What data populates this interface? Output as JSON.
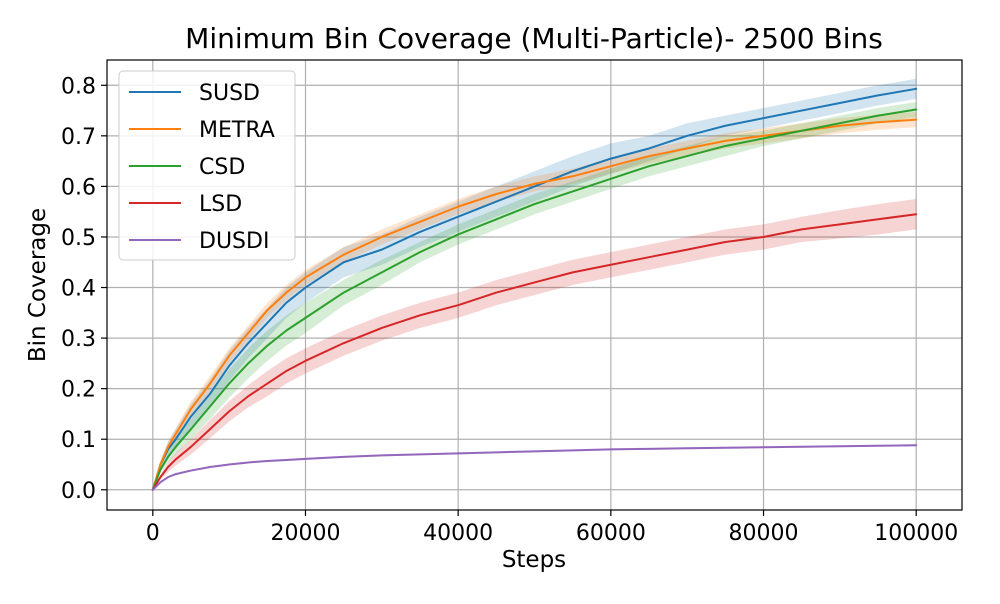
{
  "chart_data": {
    "type": "line",
    "title": "Minimum Bin Coverage (Multi-Particle)- 2500 Bins",
    "xlabel": "Steps",
    "ylabel": "Bin Coverage",
    "xlim": [
      -6000,
      106000
    ],
    "ylim": [
      -0.04,
      0.85
    ],
    "xticks": [
      0,
      20000,
      40000,
      60000,
      80000,
      100000
    ],
    "xtick_labels": [
      "0",
      "20000",
      "40000",
      "60000",
      "80000",
      "100000"
    ],
    "yticks": [
      0.0,
      0.1,
      0.2,
      0.3,
      0.4,
      0.5,
      0.6,
      0.7,
      0.8
    ],
    "ytick_labels": [
      "0.0",
      "0.1",
      "0.2",
      "0.3",
      "0.4",
      "0.5",
      "0.6",
      "0.7",
      "0.8"
    ],
    "grid": true,
    "legend_position": "upper-left",
    "x": [
      0,
      1000,
      2000,
      3000,
      5000,
      7500,
      10000,
      12500,
      15000,
      17500,
      20000,
      25000,
      30000,
      35000,
      40000,
      45000,
      50000,
      55000,
      60000,
      65000,
      70000,
      75000,
      80000,
      85000,
      90000,
      95000,
      100000
    ],
    "series": [
      {
        "name": "SUSD",
        "color": "#1f77b4",
        "values": [
          0.0,
          0.05,
          0.08,
          0.1,
          0.145,
          0.19,
          0.245,
          0.29,
          0.33,
          0.37,
          0.4,
          0.45,
          0.475,
          0.51,
          0.54,
          0.57,
          0.6,
          0.63,
          0.655,
          0.675,
          0.7,
          0.72,
          0.735,
          0.75,
          0.765,
          0.78,
          0.793
        ],
        "band": [
          0.0,
          0.008,
          0.015,
          0.02,
          0.025,
          0.028,
          0.03,
          0.03,
          0.03,
          0.03,
          0.03,
          0.03,
          0.03,
          0.03,
          0.03,
          0.03,
          0.03,
          0.03,
          0.03,
          0.025,
          0.025,
          0.02,
          0.02,
          0.02,
          0.02,
          0.02,
          0.02
        ]
      },
      {
        "name": "METRA",
        "color": "#ff7f0e",
        "values": [
          0.0,
          0.05,
          0.085,
          0.11,
          0.16,
          0.21,
          0.265,
          0.31,
          0.355,
          0.39,
          0.42,
          0.465,
          0.5,
          0.53,
          0.56,
          0.585,
          0.605,
          0.62,
          0.64,
          0.66,
          0.675,
          0.69,
          0.7,
          0.71,
          0.72,
          0.727,
          0.732
        ],
        "band": [
          0.0,
          0.006,
          0.01,
          0.012,
          0.015,
          0.015,
          0.015,
          0.015,
          0.015,
          0.015,
          0.015,
          0.015,
          0.015,
          0.015,
          0.015,
          0.015,
          0.015,
          0.015,
          0.015,
          0.015,
          0.015,
          0.015,
          0.015,
          0.015,
          0.015,
          0.015,
          0.015
        ]
      },
      {
        "name": "CSD",
        "color": "#2ca02c",
        "values": [
          0.0,
          0.04,
          0.065,
          0.085,
          0.12,
          0.165,
          0.21,
          0.25,
          0.285,
          0.315,
          0.34,
          0.39,
          0.43,
          0.47,
          0.505,
          0.535,
          0.565,
          0.59,
          0.615,
          0.64,
          0.66,
          0.68,
          0.695,
          0.71,
          0.725,
          0.74,
          0.752
        ],
        "band": [
          0.0,
          0.006,
          0.01,
          0.015,
          0.02,
          0.025,
          0.028,
          0.03,
          0.03,
          0.03,
          0.03,
          0.025,
          0.025,
          0.02,
          0.02,
          0.02,
          0.02,
          0.02,
          0.02,
          0.02,
          0.02,
          0.02,
          0.015,
          0.015,
          0.015,
          0.015,
          0.015
        ]
      },
      {
        "name": "LSD",
        "color": "#d62728",
        "values": [
          0.0,
          0.025,
          0.045,
          0.06,
          0.085,
          0.12,
          0.155,
          0.185,
          0.21,
          0.235,
          0.255,
          0.29,
          0.32,
          0.345,
          0.365,
          0.39,
          0.41,
          0.43,
          0.445,
          0.46,
          0.475,
          0.49,
          0.5,
          0.515,
          0.525,
          0.535,
          0.545
        ],
        "band": [
          0.0,
          0.005,
          0.01,
          0.012,
          0.015,
          0.018,
          0.02,
          0.022,
          0.025,
          0.025,
          0.025,
          0.025,
          0.025,
          0.025,
          0.025,
          0.025,
          0.025,
          0.025,
          0.025,
          0.025,
          0.025,
          0.025,
          0.025,
          0.025,
          0.028,
          0.03,
          0.03
        ]
      },
      {
        "name": "DUSDI",
        "color": "#9467bd",
        "values": [
          0.0,
          0.015,
          0.025,
          0.031,
          0.038,
          0.045,
          0.05,
          0.054,
          0.057,
          0.059,
          0.061,
          0.065,
          0.068,
          0.07,
          0.072,
          0.074,
          0.076,
          0.078,
          0.08,
          0.081,
          0.082,
          0.083,
          0.084,
          0.085,
          0.086,
          0.087,
          0.088
        ],
        "band": [
          0.0,
          0.002,
          0.002,
          0.002,
          0.002,
          0.002,
          0.002,
          0.002,
          0.002,
          0.002,
          0.002,
          0.002,
          0.002,
          0.002,
          0.002,
          0.002,
          0.002,
          0.002,
          0.002,
          0.002,
          0.002,
          0.002,
          0.002,
          0.002,
          0.002,
          0.002,
          0.002
        ]
      }
    ]
  }
}
